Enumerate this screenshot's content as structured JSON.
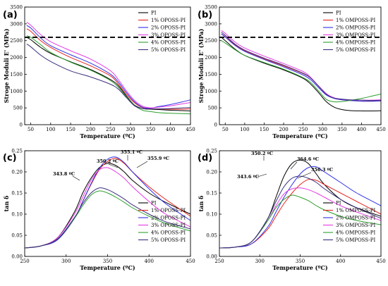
{
  "chart_data": [
    {
      "panel": "(a)",
      "type": "line",
      "xlabel": "Temperature (ºC)",
      "ylabel": "Stroge Moduli E' (MPa)",
      "xlim": [
        35,
        450
      ],
      "ylim": [
        0,
        3500
      ],
      "xticks": [
        50,
        100,
        150,
        200,
        250,
        300,
        350,
        400,
        450
      ],
      "yticks": [
        0,
        500,
        1000,
        1500,
        2000,
        2500,
        3000,
        3500
      ],
      "hline": 2600,
      "legend_position": "top-right",
      "series": [
        {
          "name": "PI",
          "color": "#000000",
          "x": [
            40,
            50,
            75,
            100,
            150,
            200,
            250,
            270,
            290,
            310,
            330,
            350,
            370,
            400,
            430,
            450
          ],
          "y": [
            2600,
            2530,
            2300,
            2120,
            1870,
            1640,
            1340,
            1150,
            850,
            580,
            480,
            460,
            450,
            430,
            420,
            410
          ]
        },
        {
          "name": "1% OPOSS-PI",
          "color": "#e8251e",
          "x": [
            40,
            50,
            75,
            100,
            150,
            200,
            250,
            270,
            290,
            310,
            330,
            350,
            370,
            400,
            430,
            450
          ],
          "y": [
            2850,
            2780,
            2500,
            2300,
            2000,
            1750,
            1450,
            1200,
            900,
            650,
            510,
            480,
            470,
            460,
            460,
            470
          ]
        },
        {
          "name": "2% OPOSS-PI",
          "color": "#2f30e6",
          "x": [
            40,
            50,
            75,
            100,
            150,
            200,
            250,
            270,
            290,
            310,
            330,
            350,
            370,
            400,
            430,
            450
          ],
          "y": [
            2950,
            2880,
            2580,
            2350,
            2080,
            1830,
            1500,
            1260,
            950,
            680,
            520,
            490,
            540,
            600,
            680,
            740
          ]
        },
        {
          "name": "3% OPOSS-PI",
          "color": "#e43ae4",
          "x": [
            40,
            50,
            75,
            100,
            150,
            200,
            250,
            270,
            290,
            310,
            330,
            350,
            370,
            400,
            430,
            450
          ],
          "y": [
            3050,
            2960,
            2680,
            2470,
            2200,
            1950,
            1600,
            1330,
            1000,
            720,
            550,
            500,
            520,
            560,
            620,
            660
          ]
        },
        {
          "name": "4% OPOSS-PI",
          "color": "#2d9e2d",
          "x": [
            40,
            50,
            75,
            100,
            150,
            200,
            250,
            270,
            290,
            310,
            330,
            350,
            370,
            400,
            430,
            450
          ],
          "y": [
            2650,
            2600,
            2380,
            2150,
            1860,
            1620,
            1310,
            1100,
            820,
            570,
            430,
            390,
            360,
            340,
            330,
            320
          ]
        },
        {
          "name": "5% OPOSS-PI",
          "color": "#3a2f7e",
          "x": [
            40,
            50,
            75,
            100,
            150,
            200,
            250,
            270,
            290,
            310,
            330,
            350,
            370,
            400,
            430,
            450
          ],
          "y": [
            2400,
            2320,
            2070,
            1880,
            1600,
            1420,
            1200,
            1050,
            800,
            560,
            480,
            470,
            470,
            480,
            500,
            510
          ]
        }
      ]
    },
    {
      "panel": "(b)",
      "type": "line",
      "xlabel": "Temperature (ºC)",
      "ylabel": "Stroge Moduli E' (MPa)",
      "xlim": [
        35,
        450
      ],
      "ylim": [
        0,
        3500
      ],
      "xticks": [
        50,
        100,
        150,
        200,
        250,
        300,
        350,
        400,
        450
      ],
      "yticks": [
        0,
        500,
        1000,
        1500,
        2000,
        2500,
        3000,
        3500
      ],
      "hline": 2600,
      "legend_position": "top-right",
      "series": [
        {
          "name": "PI",
          "color": "#000000",
          "x": [
            40,
            50,
            75,
            100,
            150,
            200,
            250,
            270,
            290,
            310,
            330,
            350,
            370,
            400,
            430,
            450
          ],
          "y": [
            2600,
            2500,
            2250,
            2060,
            1830,
            1630,
            1380,
            1200,
            950,
            680,
            520,
            450,
            420,
            410,
            410,
            415
          ]
        },
        {
          "name": "1% OMPOSS-PI",
          "color": "#e8251e",
          "x": [
            40,
            50,
            75,
            100,
            150,
            200,
            250,
            270,
            290,
            310,
            330,
            350,
            370,
            400,
            430,
            450
          ],
          "y": [
            2700,
            2620,
            2380,
            2200,
            1960,
            1750,
            1520,
            1380,
            1150,
            920,
            790,
            740,
            720,
            700,
            700,
            710
          ]
        },
        {
          "name": "2% OMPOSS-PI",
          "color": "#2f30e6",
          "x": [
            40,
            50,
            75,
            100,
            150,
            200,
            250,
            270,
            290,
            310,
            330,
            350,
            370,
            400,
            430,
            450
          ],
          "y": [
            2700,
            2610,
            2360,
            2180,
            1940,
            1720,
            1480,
            1330,
            1100,
            880,
            780,
            740,
            720,
            700,
            700,
            710
          ]
        },
        {
          "name": "3% OMPOSS-PI",
          "color": "#e43ae4",
          "x": [
            40,
            50,
            75,
            100,
            150,
            200,
            250,
            270,
            290,
            310,
            330,
            350,
            370,
            400,
            430,
            450
          ],
          "y": [
            2800,
            2720,
            2460,
            2280,
            2040,
            1820,
            1580,
            1400,
            1150,
            920,
            800,
            760,
            740,
            730,
            730,
            740
          ]
        },
        {
          "name": "4% OMPOSS-PI",
          "color": "#2d9e2d",
          "x": [
            40,
            50,
            75,
            100,
            150,
            200,
            250,
            270,
            290,
            310,
            330,
            350,
            370,
            400,
            430,
            450
          ],
          "y": [
            2500,
            2430,
            2230,
            2060,
            1850,
            1650,
            1400,
            1250,
            1000,
            750,
            680,
            690,
            720,
            780,
            860,
            910
          ]
        },
        {
          "name": "5% OMPOSS-PI",
          "color": "#3a2f7e",
          "x": [
            40,
            50,
            75,
            100,
            150,
            200,
            250,
            270,
            290,
            310,
            330,
            350,
            370,
            400,
            430,
            450
          ],
          "y": [
            2750,
            2660,
            2400,
            2220,
            1980,
            1770,
            1530,
            1380,
            1140,
            900,
            790,
            760,
            740,
            730,
            720,
            720
          ]
        }
      ]
    },
    {
      "panel": "(c)",
      "type": "line",
      "xlabel": "Temperature (ºC)",
      "ylabel": "tan δ",
      "xlim": [
        250,
        450
      ],
      "ylim": [
        0,
        0.25
      ],
      "xticks": [
        250,
        300,
        350,
        400,
        450
      ],
      "yticks": [
        0,
        0.05,
        0.1,
        0.15,
        0.2,
        0.25
      ],
      "ytick_labels": [
        "0.00",
        "0.05",
        "0.10",
        "0.15",
        "0.20",
        "0.25"
      ],
      "legend_position": "bottom-right",
      "annotations": [
        {
          "text": "350.2 ºC"
        },
        {
          "text": "355.1 ºC"
        },
        {
          "text": "355.9 ºC"
        },
        {
          "text": "343.8 ºC"
        }
      ],
      "series": [
        {
          "name": "PI",
          "color": "#000000",
          "x": [
            250,
            270,
            290,
            310,
            320,
            330,
            340,
            350,
            360,
            370,
            380,
            400,
            420,
            450
          ],
          "y": [
            0.02,
            0.025,
            0.045,
            0.105,
            0.15,
            0.185,
            0.21,
            0.22,
            0.215,
            0.2,
            0.18,
            0.15,
            0.128,
            0.1
          ]
        },
        {
          "name": "1% OPOSS-PI",
          "color": "#e8251e",
          "x": [
            250,
            270,
            290,
            310,
            320,
            330,
            340,
            350,
            360,
            370,
            380,
            400,
            420,
            450
          ],
          "y": [
            0.02,
            0.025,
            0.04,
            0.09,
            0.13,
            0.17,
            0.205,
            0.225,
            0.232,
            0.22,
            0.2,
            0.165,
            0.135,
            0.095
          ]
        },
        {
          "name": "2% OPOSS-PI",
          "color": "#2f30e6",
          "x": [
            250,
            270,
            290,
            310,
            320,
            330,
            340,
            350,
            360,
            370,
            380,
            400,
            420,
            450
          ],
          "y": [
            0.02,
            0.025,
            0.04,
            0.09,
            0.13,
            0.172,
            0.208,
            0.23,
            0.235,
            0.222,
            0.2,
            0.16,
            0.125,
            0.085
          ]
        },
        {
          "name": "3% OPOSS-PI",
          "color": "#e43ae4",
          "x": [
            250,
            270,
            290,
            310,
            320,
            330,
            340,
            350,
            360,
            370,
            380,
            400,
            420,
            450
          ],
          "y": [
            0.02,
            0.025,
            0.045,
            0.1,
            0.14,
            0.18,
            0.205,
            0.21,
            0.2,
            0.185,
            0.165,
            0.13,
            0.1,
            0.07
          ]
        },
        {
          "name": "4% OPOSS-PI",
          "color": "#2d9e2d",
          "x": [
            250,
            270,
            290,
            310,
            320,
            330,
            340,
            350,
            360,
            370,
            380,
            400,
            420,
            450
          ],
          "y": [
            0.02,
            0.025,
            0.042,
            0.09,
            0.12,
            0.145,
            0.155,
            0.15,
            0.14,
            0.128,
            0.115,
            0.095,
            0.078,
            0.06
          ]
        },
        {
          "name": "5% OPOSS-PI",
          "color": "#3a2f7e",
          "x": [
            250,
            270,
            290,
            310,
            320,
            330,
            340,
            350,
            360,
            370,
            380,
            400,
            420,
            450
          ],
          "y": [
            0.02,
            0.025,
            0.042,
            0.092,
            0.125,
            0.15,
            0.162,
            0.158,
            0.148,
            0.136,
            0.122,
            0.1,
            0.082,
            0.065
          ]
        }
      ]
    },
    {
      "panel": "(d)",
      "type": "line",
      "xlabel": "Temperature (ºC)",
      "ylabel": "tan δ",
      "xlim": [
        250,
        450
      ],
      "ylim": [
        0,
        0.25
      ],
      "xticks": [
        250,
        300,
        350,
        400,
        450
      ],
      "yticks": [
        0,
        0.05,
        0.1,
        0.15,
        0.2,
        0.25
      ],
      "ytick_labels": [
        "0.00",
        "0.05",
        "0.10",
        "0.15",
        "0.20",
        "0.25"
      ],
      "legend_position": "bottom-right",
      "annotations": [
        {
          "text": "350.2 ºC"
        },
        {
          "text": "364.6 ºC"
        },
        {
          "text": "356.3 ºC"
        },
        {
          "text": "343.6 ºC"
        }
      ],
      "series": [
        {
          "name": "PI",
          "color": "#000000",
          "x": [
            250,
            270,
            290,
            310,
            320,
            330,
            340,
            350,
            360,
            370,
            380,
            400,
            420,
            450
          ],
          "y": [
            0.02,
            0.022,
            0.035,
            0.09,
            0.14,
            0.19,
            0.22,
            0.228,
            0.22,
            0.195,
            0.17,
            0.135,
            0.115,
            0.095
          ]
        },
        {
          "name": "1% OMPOSS-PI",
          "color": "#e8251e",
          "x": [
            250,
            270,
            290,
            310,
            320,
            330,
            340,
            350,
            360,
            370,
            380,
            400,
            420,
            450
          ],
          "y": [
            0.02,
            0.022,
            0.03,
            0.065,
            0.095,
            0.125,
            0.15,
            0.17,
            0.182,
            0.18,
            0.17,
            0.15,
            0.13,
            0.1
          ]
        },
        {
          "name": "2% OMPOSS-PI",
          "color": "#2f30e6",
          "x": [
            250,
            270,
            290,
            310,
            320,
            330,
            340,
            350,
            360,
            370,
            380,
            400,
            420,
            450
          ],
          "y": [
            0.02,
            0.022,
            0.03,
            0.07,
            0.105,
            0.14,
            0.17,
            0.195,
            0.21,
            0.212,
            0.2,
            0.175,
            0.15,
            0.12
          ]
        },
        {
          "name": "3% OMPOSS-PI",
          "color": "#e43ae4",
          "x": [
            250,
            270,
            290,
            310,
            320,
            330,
            340,
            350,
            360,
            370,
            380,
            400,
            420,
            450
          ],
          "y": [
            0.02,
            0.022,
            0.035,
            0.085,
            0.12,
            0.148,
            0.16,
            0.162,
            0.158,
            0.15,
            0.14,
            0.12,
            0.105,
            0.085
          ]
        },
        {
          "name": "4% OMPOSS-PI",
          "color": "#2d9e2d",
          "x": [
            250,
            270,
            290,
            310,
            320,
            330,
            340,
            350,
            360,
            370,
            380,
            400,
            420,
            450
          ],
          "y": [
            0.02,
            0.022,
            0.035,
            0.085,
            0.115,
            0.135,
            0.145,
            0.14,
            0.132,
            0.12,
            0.11,
            0.095,
            0.085,
            0.075
          ]
        },
        {
          "name": "5% OMPOSS-PI",
          "color": "#3a2f7e",
          "x": [
            250,
            270,
            290,
            310,
            320,
            330,
            340,
            350,
            360,
            370,
            380,
            400,
            420,
            450
          ],
          "y": [
            0.02,
            0.022,
            0.035,
            0.09,
            0.13,
            0.165,
            0.185,
            0.19,
            0.185,
            0.175,
            0.16,
            0.135,
            0.115,
            0.09
          ]
        }
      ]
    }
  ]
}
